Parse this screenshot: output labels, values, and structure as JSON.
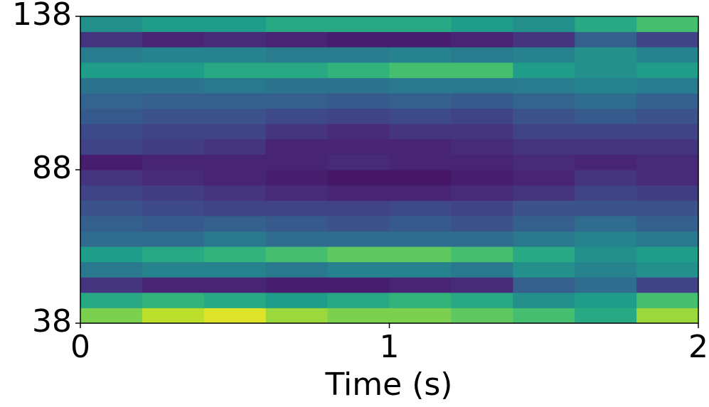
{
  "chart_data": {
    "type": "heatmap",
    "xlabel": "Time (s)",
    "xlim": [
      0,
      2
    ],
    "xticks": [
      0,
      1,
      2
    ],
    "ylim": [
      38,
      138
    ],
    "yticks": [
      38,
      88,
      138
    ],
    "colormap": "viridis",
    "zlim": [
      0,
      1
    ],
    "xbins": [
      0,
      0.2,
      0.4,
      0.6,
      0.8,
      1.0,
      1.2,
      1.4,
      1.6,
      1.8,
      2.0
    ],
    "ybins": [
      38,
      43,
      48,
      53,
      58,
      63,
      68,
      73,
      78,
      83,
      88,
      93,
      98,
      103,
      108,
      113,
      118,
      123,
      128,
      133,
      138
    ],
    "z": [
      [
        0.8,
        0.9,
        0.95,
        0.85,
        0.8,
        0.8,
        0.75,
        0.7,
        0.6,
        0.85
      ],
      [
        0.6,
        0.65,
        0.6,
        0.55,
        0.6,
        0.65,
        0.6,
        0.5,
        0.55,
        0.7
      ],
      [
        0.15,
        0.1,
        0.1,
        0.08,
        0.08,
        0.1,
        0.12,
        0.3,
        0.35,
        0.2
      ],
      [
        0.4,
        0.45,
        0.45,
        0.4,
        0.45,
        0.45,
        0.4,
        0.5,
        0.45,
        0.5
      ],
      [
        0.55,
        0.6,
        0.65,
        0.7,
        0.75,
        0.75,
        0.7,
        0.6,
        0.5,
        0.55
      ],
      [
        0.35,
        0.35,
        0.4,
        0.35,
        0.35,
        0.35,
        0.35,
        0.4,
        0.45,
        0.4
      ],
      [
        0.3,
        0.28,
        0.3,
        0.28,
        0.25,
        0.28,
        0.25,
        0.3,
        0.35,
        0.3
      ],
      [
        0.25,
        0.22,
        0.2,
        0.2,
        0.2,
        0.22,
        0.2,
        0.25,
        0.25,
        0.25
      ],
      [
        0.2,
        0.18,
        0.15,
        0.12,
        0.1,
        0.1,
        0.12,
        0.15,
        0.2,
        0.18
      ],
      [
        0.15,
        0.12,
        0.1,
        0.08,
        0.06,
        0.06,
        0.08,
        0.1,
        0.15,
        0.12
      ],
      [
        0.08,
        0.1,
        0.1,
        0.1,
        0.12,
        0.1,
        0.1,
        0.12,
        0.1,
        0.12
      ],
      [
        0.2,
        0.18,
        0.15,
        0.1,
        0.1,
        0.1,
        0.12,
        0.15,
        0.15,
        0.15
      ],
      [
        0.22,
        0.2,
        0.2,
        0.15,
        0.12,
        0.15,
        0.15,
        0.2,
        0.2,
        0.2
      ],
      [
        0.28,
        0.25,
        0.25,
        0.22,
        0.2,
        0.22,
        0.2,
        0.25,
        0.28,
        0.25
      ],
      [
        0.32,
        0.3,
        0.3,
        0.3,
        0.28,
        0.3,
        0.28,
        0.32,
        0.35,
        0.3
      ],
      [
        0.38,
        0.38,
        0.4,
        0.38,
        0.38,
        0.4,
        0.4,
        0.42,
        0.45,
        0.42
      ],
      [
        0.55,
        0.55,
        0.6,
        0.6,
        0.65,
        0.7,
        0.7,
        0.55,
        0.5,
        0.55
      ],
      [
        0.42,
        0.45,
        0.45,
        0.42,
        0.42,
        0.45,
        0.42,
        0.45,
        0.5,
        0.45
      ],
      [
        0.15,
        0.1,
        0.12,
        0.1,
        0.08,
        0.08,
        0.1,
        0.15,
        0.3,
        0.2
      ],
      [
        0.5,
        0.55,
        0.55,
        0.6,
        0.6,
        0.6,
        0.55,
        0.5,
        0.6,
        0.7
      ]
    ]
  }
}
